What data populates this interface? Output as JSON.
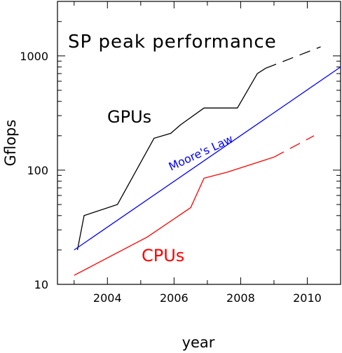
{
  "chart_data": {
    "type": "line",
    "title": "SP peak performance",
    "xlabel": "year",
    "ylabel": "Gflops",
    "y_scale": "log",
    "xlim": [
      2002.5,
      2011
    ],
    "ylim": [
      10,
      3000
    ],
    "x_ticks": [
      2004,
      2006,
      2008,
      2010
    ],
    "x_tick_labels": [
      "2004",
      "2006",
      "2008",
      "2010"
    ],
    "y_ticks": [
      10,
      100,
      1000
    ],
    "y_tick_labels": [
      "10",
      "100",
      "1000"
    ],
    "grid": false,
    "series": [
      {
        "name": "GPUs",
        "color": "#000000",
        "x": [
          2003.1,
          2003.3,
          2004.3,
          2005.4,
          2005.9,
          2006.2,
          2006.9,
          2007.9,
          2008.5,
          2008.75
        ],
        "y": [
          20,
          40,
          50,
          190,
          210,
          250,
          350,
          350,
          700,
          780
        ],
        "dashed": {
          "x": [
            2008.75,
            2010.4
          ],
          "y": [
            780,
            1200
          ]
        }
      },
      {
        "name": "CPUs",
        "color": "#ff0000",
        "x": [
          2003.0,
          2005.2,
          2006.5,
          2006.9,
          2007.6,
          2009.0
        ],
        "y": [
          12,
          26,
          47,
          85,
          96,
          130
        ],
        "dashed": {
          "x": [
            2009.0,
            2010.2
          ],
          "y": [
            130,
            200
          ]
        }
      },
      {
        "name": "Moore's Law",
        "color": "#0000ff",
        "x": [
          2003.0,
          2011.0
        ],
        "y": [
          20,
          800
        ]
      }
    ]
  }
}
